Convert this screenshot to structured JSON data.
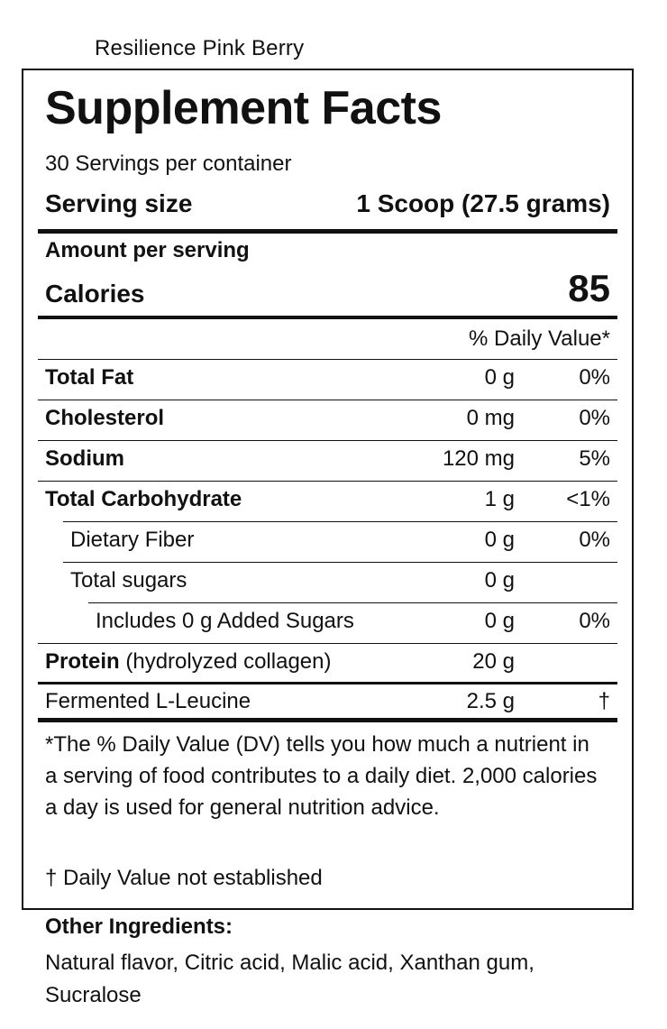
{
  "product_name": "Resilience Pink Berry",
  "label": {
    "title": "Supplement Facts",
    "servings_per_container": "30 Servings per container",
    "serving_size_label": "Serving size",
    "serving_size_value": "1 Scoop (27.5 grams)",
    "amount_per_serving": "Amount per serving",
    "calories_label": "Calories",
    "calories_value": "85",
    "dv_header": "% Daily Value*",
    "rows": [
      {
        "label": "Total Fat",
        "amount": "0 g",
        "dv": "0%"
      },
      {
        "label": "Cholesterol",
        "amount": "0 mg",
        "dv": "0%"
      },
      {
        "label": "Sodium",
        "amount": "120 mg",
        "dv": "5%"
      },
      {
        "label": "Total Carbohydrate",
        "amount": "1 g",
        "dv": "<1%"
      },
      {
        "label": "Dietary Fiber",
        "amount": "0 g",
        "dv": "0%"
      },
      {
        "label": "Total sugars",
        "amount": "0 g",
        "dv": ""
      },
      {
        "label": "Includes 0 g Added Sugars",
        "amount": "0 g",
        "dv": "0%"
      },
      {
        "label_bold": "Protein",
        "label_rest": " (hydrolyzed collagen)",
        "amount": "20 g",
        "dv": ""
      },
      {
        "label": "Fermented L-Leucine",
        "amount": "2.5 g",
        "dv": "†"
      }
    ],
    "footnote": "*The % Daily Value (DV) tells you how much a nutrient in a serving of food contributes to a daily diet. 2,000 calories a day is used for general nutrition advice.",
    "dagger_note": "†  Daily Value not established"
  },
  "other_ingredients": {
    "title": "Other Ingredients:",
    "body": "Natural flavor, Citric acid, Malic acid, Xanthan gum, Sucralose"
  }
}
